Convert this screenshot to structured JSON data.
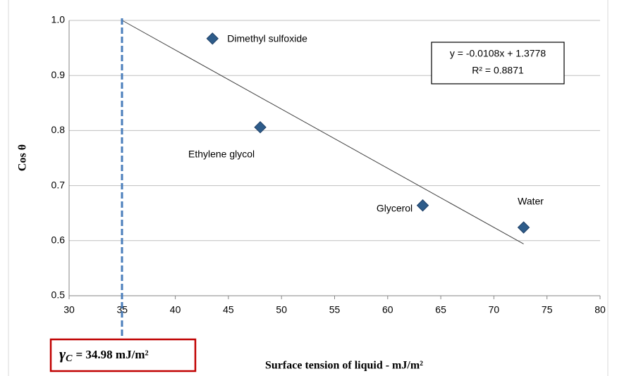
{
  "chart_data": {
    "type": "scatter",
    "x_label": "Surface tension of liquid  - mJ/m²",
    "y_label": "Cos θ",
    "x": [
      43.5,
      48.0,
      63.3,
      72.8
    ],
    "values": [
      0.967,
      0.806,
      0.664,
      0.624
    ],
    "point_labels": [
      "Dimethyl sulfoxide",
      "Ethylene glycol",
      "Glycerol",
      "Water"
    ],
    "color": "#2e5c8a",
    "xlim": [
      30,
      80
    ],
    "xticks": [
      30,
      35,
      40,
      45,
      50,
      55,
      60,
      65,
      70,
      75,
      80
    ],
    "ylim": [
      0.5,
      1
    ],
    "yticks": [
      0.5,
      0.6,
      0.7,
      0.8,
      0.9,
      {
        "value": 1,
        "label": "1.0"
      }
    ],
    "grid": true,
    "trendline": {
      "x": [
        35,
        72.8
      ],
      "y": [
        1.0,
        0.594
      ],
      "color": "#404040"
    },
    "equation": [
      "y = -0.0108x + 1.3778",
      "R² = 0.8871"
    ],
    "critical_line": {
      "value": 34.98,
      "color": "#4a7ebb",
      "symbol": "γ",
      "subscript": "C",
      "label": "= 34.98 mJ/m²",
      "box_color": "#c00000"
    }
  }
}
